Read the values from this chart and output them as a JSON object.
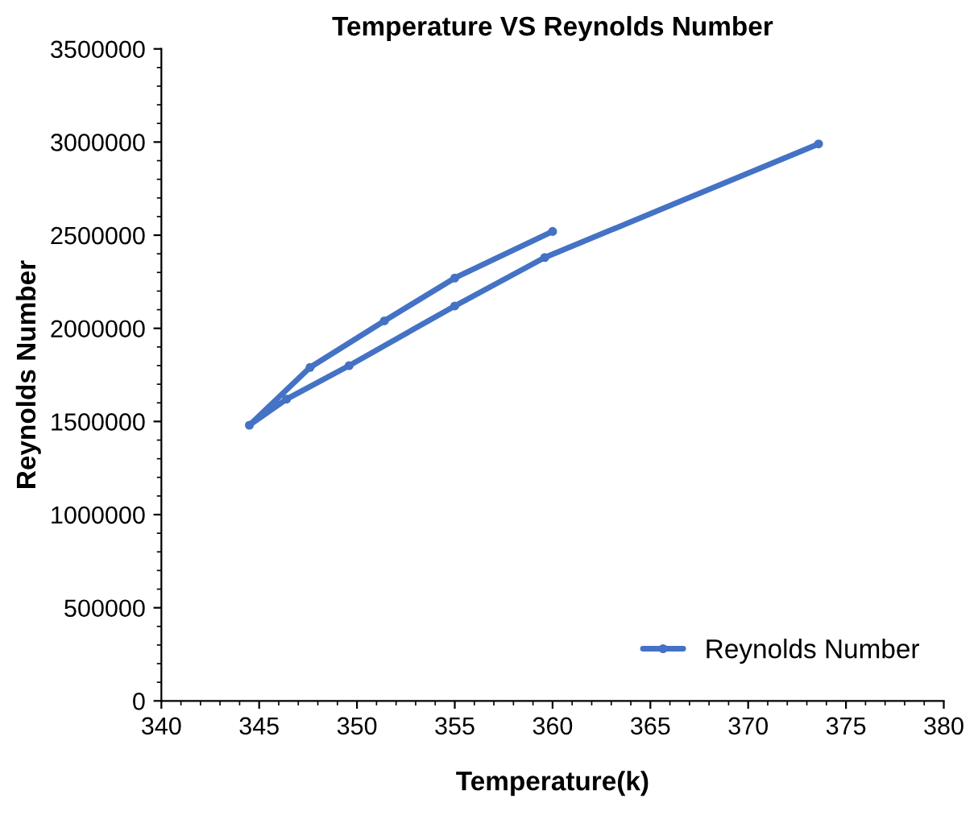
{
  "chart_data": {
    "type": "line",
    "title": "Temperature VS Reynolds Number",
    "xlabel": "Temperature(k)",
    "ylabel": "Reynolds Number",
    "series": [
      {
        "name": "Reynolds Number",
        "color": "#4472c4",
        "x": [
          360.0,
          355.0,
          351.4,
          347.6,
          344.5,
          346.4,
          349.6,
          355.0,
          359.6,
          373.6
        ],
        "values": [
          2520000,
          2270000,
          2040000,
          1790000,
          1480000,
          1620000,
          1800000,
          2120000,
          2380000,
          2990000
        ]
      }
    ],
    "xlim": [
      340,
      380
    ],
    "xticks": [
      340,
      345,
      350,
      355,
      360,
      365,
      370,
      375,
      380
    ],
    "ylim": [
      0,
      3500000
    ],
    "yticks": [
      0,
      500000,
      1000000,
      1500000,
      2000000,
      2500000,
      3000000,
      3500000
    ],
    "grid": false,
    "legend": "bottom right",
    "marker": "circle",
    "line_style": "solid"
  }
}
